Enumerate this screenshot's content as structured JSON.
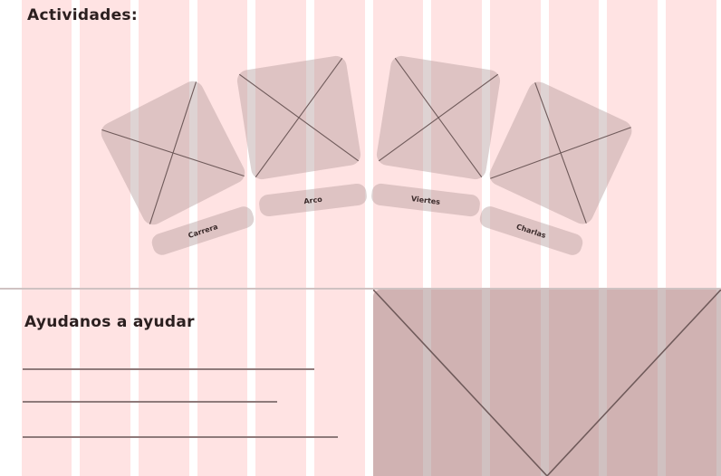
{
  "activities": {
    "title": "Actividades:",
    "items": [
      {
        "label": "Carrera"
      },
      {
        "label": "Arco"
      },
      {
        "label": "Viertes"
      },
      {
        "label": "Charlas"
      }
    ]
  },
  "help": {
    "title": "Ayudanos a ayudar"
  },
  "colors": {
    "grid_column": "#ffe3e3",
    "placeholder": "#b09696",
    "text": "#2b1f1f"
  }
}
